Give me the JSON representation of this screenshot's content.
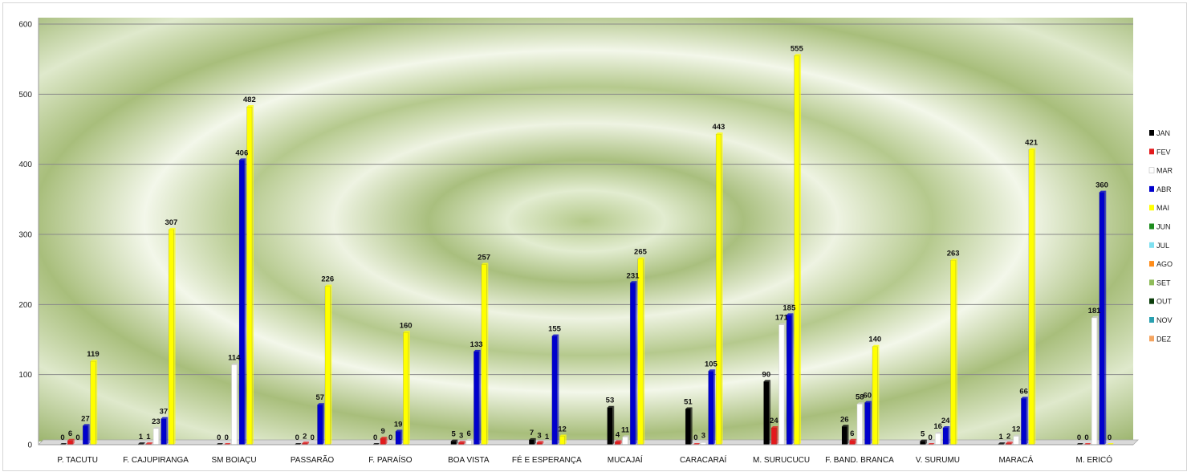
{
  "chart_data": {
    "type": "bar",
    "ylim": [
      0,
      600
    ],
    "yticks": [
      0,
      100,
      200,
      300,
      400,
      500,
      600
    ],
    "grid": true,
    "legend_position": "right",
    "categories": [
      "P. TACUTU",
      "F. CAJUPIRANGA",
      "SM BOIAÇU",
      "PASSARÃO",
      "F. PARAÍSO",
      "BOA VISTA",
      "FÉ E ESPERANÇA",
      "MUCAJAÍ",
      "CARACARAÍ",
      "M. SURUCUCU",
      "F.  BAND. BRANCA",
      "V. SURUMU",
      "MARACÁ",
      "M. ERICÓ"
    ],
    "series": [
      {
        "name": "JAN",
        "color": "#000000",
        "values": [
          0,
          1,
          0,
          0,
          0,
          5,
          7,
          53,
          51,
          90,
          26,
          5,
          1,
          0
        ]
      },
      {
        "name": "FEV",
        "color": "#e31a1c",
        "values": [
          6,
          1,
          0,
          2,
          9,
          3,
          3,
          4,
          0,
          24,
          6,
          0,
          2,
          0
        ]
      },
      {
        "name": "MAR",
        "color": "#ffffff",
        "values": [
          0,
          23,
          114,
          0,
          0,
          6,
          1,
          11,
          3,
          171,
          58,
          16,
          12,
          181
        ]
      },
      {
        "name": "ABR",
        "color": "#0000cc",
        "values": [
          27,
          37,
          406,
          57,
          19,
          133,
          155,
          231,
          105,
          185,
          60,
          24,
          66,
          360
        ]
      },
      {
        "name": "MAI",
        "color": "#ffff00",
        "values": [
          119,
          307,
          482,
          226,
          160,
          257,
          12,
          265,
          443,
          555,
          140,
          263,
          421,
          0
        ]
      },
      {
        "name": "JUN",
        "color": "#1e8c1e",
        "values": [
          null,
          null,
          null,
          null,
          null,
          null,
          null,
          null,
          null,
          null,
          null,
          null,
          null,
          null
        ]
      },
      {
        "name": "JUL",
        "color": "#7fe0f0",
        "values": [
          null,
          null,
          null,
          null,
          null,
          null,
          null,
          null,
          null,
          null,
          null,
          null,
          null,
          null
        ]
      },
      {
        "name": "AGO",
        "color": "#ff8c1a",
        "values": [
          null,
          null,
          null,
          null,
          null,
          null,
          null,
          null,
          null,
          null,
          null,
          null,
          null,
          null
        ]
      },
      {
        "name": "SET",
        "color": "#8fbc5a",
        "values": [
          null,
          null,
          null,
          null,
          null,
          null,
          null,
          null,
          null,
          null,
          null,
          null,
          null,
          null
        ]
      },
      {
        "name": "OUT",
        "color": "#0b3d0b",
        "values": [
          null,
          null,
          null,
          null,
          null,
          null,
          null,
          null,
          null,
          null,
          null,
          null,
          null,
          null
        ]
      },
      {
        "name": "NOV",
        "color": "#2aa0b0",
        "values": [
          null,
          null,
          null,
          null,
          null,
          null,
          null,
          null,
          null,
          null,
          null,
          null,
          null,
          null
        ]
      },
      {
        "name": "DEZ",
        "color": "#f4a460",
        "values": [
          null,
          null,
          null,
          null,
          null,
          null,
          null,
          null,
          null,
          null,
          null,
          null,
          null,
          null
        ]
      }
    ]
  }
}
